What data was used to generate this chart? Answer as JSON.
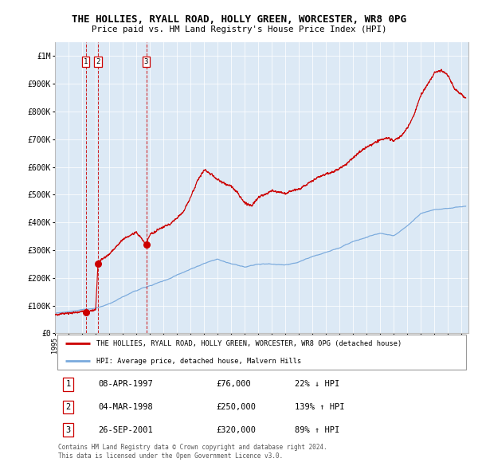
{
  "title1": "THE HOLLIES, RYALL ROAD, HOLLY GREEN, WORCESTER, WR8 0PG",
  "title2": "Price paid vs. HM Land Registry's House Price Index (HPI)",
  "bg_color": "#dce9f5",
  "red_line_color": "#cc0000",
  "blue_line_color": "#7aaadd",
  "sale_points": [
    {
      "label": "1",
      "date_num": 1997.27,
      "price": 76000
    },
    {
      "label": "2",
      "date_num": 1998.17,
      "price": 250000
    },
    {
      "label": "3",
      "date_num": 2001.73,
      "price": 320000
    }
  ],
  "sale_labels_info": [
    {
      "num": "1",
      "date": "08-APR-1997",
      "price": "£76,000",
      "change": "22% ↓ HPI"
    },
    {
      "num": "2",
      "date": "04-MAR-1998",
      "price": "£250,000",
      "change": "139% ↑ HPI"
    },
    {
      "num": "3",
      "date": "26-SEP-2001",
      "price": "£320,000",
      "change": "89% ↑ HPI"
    }
  ],
  "legend_red": "THE HOLLIES, RYALL ROAD, HOLLY GREEN, WORCESTER, WR8 0PG (detached house)",
  "legend_blue": "HPI: Average price, detached house, Malvern Hills",
  "footer": "Contains HM Land Registry data © Crown copyright and database right 2024.\nThis data is licensed under the Open Government Licence v3.0.",
  "ylim": [
    0,
    1050000
  ],
  "xlim_start": 1995.0,
  "xlim_end": 2025.5,
  "yticks": [
    0,
    100000,
    200000,
    300000,
    400000,
    500000,
    600000,
    700000,
    800000,
    900000,
    1000000
  ],
  "ytick_labels": [
    "£0",
    "£100K",
    "£200K",
    "£300K",
    "£400K",
    "£500K",
    "£600K",
    "£700K",
    "£800K",
    "£900K",
    "£1M"
  ],
  "xticks": [
    1995,
    1996,
    1997,
    1998,
    1999,
    2000,
    2001,
    2002,
    2003,
    2004,
    2005,
    2006,
    2007,
    2008,
    2009,
    2010,
    2011,
    2012,
    2013,
    2014,
    2015,
    2016,
    2017,
    2018,
    2019,
    2020,
    2021,
    2022,
    2023,
    2024,
    2025
  ]
}
